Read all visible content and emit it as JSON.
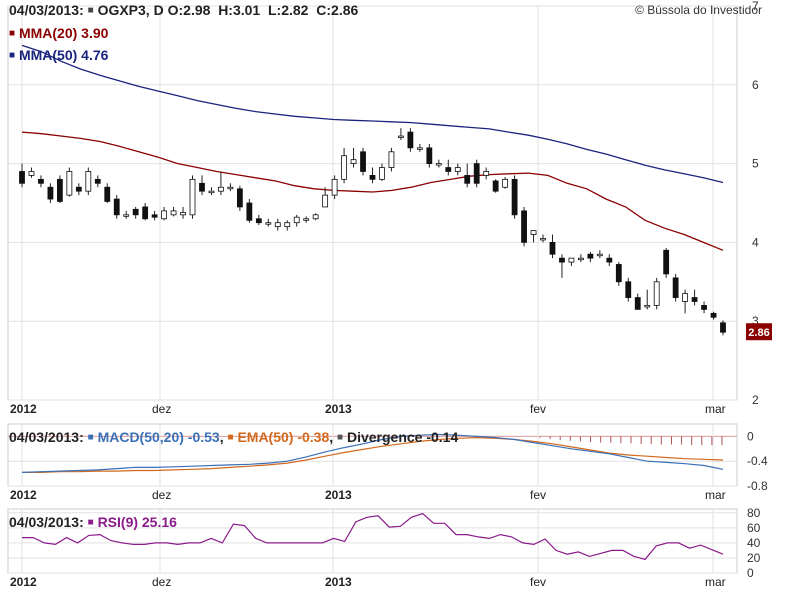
{
  "branding": "© Bússola do Investidor",
  "header": {
    "date": "04/03/2013:",
    "ticker": "OGXP3, D",
    "o_label": "O:",
    "o_val": "2.98",
    "h_label": "H:",
    "h_val": "3.01",
    "l_label": "L:",
    "l_val": "2.82",
    "c_label": "C:",
    "c_val": "2.86"
  },
  "legend": {
    "mma20": "MMA(20) 3.90",
    "mma50": "MMA(50) 4.76",
    "macd_date": "04/03/2013:",
    "macd": "MACD(50,20) -0.53",
    "ema": "EMA(50) -0.38",
    "divergence": "Divergence -0.14",
    "rsi_date": "04/03/2013:",
    "rsi": "RSI(9) 25.16"
  },
  "last_price_badge": "2.86",
  "colors": {
    "mma20": "#8b0000",
    "mma50": "#1a237e",
    "macd": "#3b6fb6",
    "ema": "#d2691e",
    "rsi": "#8b1a8b",
    "badge": "#8b0000"
  },
  "chart_data": [
    {
      "type": "candlestick",
      "title": "OGXP3, D",
      "x_ticks": [
        "2012",
        "dez",
        "2013",
        "fev",
        "mar"
      ],
      "y_ticks": [
        "2",
        "3",
        "4",
        "5",
        "6",
        "7"
      ],
      "ylim": [
        2,
        7
      ],
      "ohlc": [
        [
          4.9,
          5.0,
          4.7,
          4.75
        ],
        [
          4.85,
          4.95,
          4.82,
          4.9
        ],
        [
          4.8,
          4.85,
          4.7,
          4.75
        ],
        [
          4.7,
          4.75,
          4.5,
          4.55
        ],
        [
          4.8,
          4.85,
          4.5,
          4.52
        ],
        [
          4.6,
          4.95,
          4.58,
          4.9
        ],
        [
          4.7,
          4.75,
          4.6,
          4.65
        ],
        [
          4.65,
          4.95,
          4.6,
          4.9
        ],
        [
          4.8,
          4.85,
          4.7,
          4.75
        ],
        [
          4.7,
          4.75,
          4.5,
          4.52
        ],
        [
          4.55,
          4.6,
          4.3,
          4.35
        ],
        [
          4.35,
          4.4,
          4.3,
          4.35
        ],
        [
          4.42,
          4.45,
          4.3,
          4.35
        ],
        [
          4.45,
          4.5,
          4.28,
          4.3
        ],
        [
          4.35,
          4.4,
          4.28,
          4.32
        ],
        [
          4.3,
          4.45,
          4.28,
          4.4
        ],
        [
          4.35,
          4.45,
          4.33,
          4.4
        ],
        [
          4.35,
          4.45,
          4.3,
          4.38
        ],
        [
          4.35,
          4.85,
          4.3,
          4.8
        ],
        [
          4.75,
          4.85,
          4.6,
          4.65
        ],
        [
          4.65,
          4.7,
          4.6,
          4.65
        ],
        [
          4.65,
          4.9,
          4.6,
          4.7
        ],
        [
          4.7,
          4.75,
          4.65,
          4.7
        ],
        [
          4.68,
          4.72,
          4.4,
          4.45
        ],
        [
          4.5,
          4.55,
          4.25,
          4.28
        ],
        [
          4.3,
          4.35,
          4.22,
          4.25
        ],
        [
          4.25,
          4.3,
          4.2,
          4.25
        ],
        [
          4.2,
          4.3,
          4.15,
          4.25
        ],
        [
          4.2,
          4.28,
          4.15,
          4.25
        ],
        [
          4.25,
          4.35,
          4.2,
          4.32
        ],
        [
          4.3,
          4.33,
          4.25,
          4.3
        ],
        [
          4.3,
          4.37,
          4.28,
          4.35
        ],
        [
          4.45,
          4.7,
          4.45,
          4.6
        ],
        [
          4.6,
          4.85,
          4.55,
          4.8
        ],
        [
          4.8,
          5.2,
          4.75,
          5.1
        ],
        [
          5.0,
          5.2,
          4.95,
          5.05
        ],
        [
          5.15,
          5.2,
          4.85,
          4.9
        ],
        [
          4.85,
          4.95,
          4.75,
          4.8
        ],
        [
          4.8,
          5.0,
          4.78,
          4.95
        ],
        [
          4.95,
          5.2,
          4.9,
          5.15
        ],
        [
          5.35,
          5.45,
          5.3,
          5.35
        ],
        [
          5.4,
          5.45,
          5.15,
          5.2
        ],
        [
          5.2,
          5.25,
          5.15,
          5.2
        ],
        [
          5.2,
          5.25,
          4.95,
          5.0
        ],
        [
          5.0,
          5.05,
          4.95,
          5.0
        ],
        [
          4.95,
          5.05,
          4.85,
          4.9
        ],
        [
          4.9,
          5.0,
          4.85,
          4.95
        ],
        [
          4.85,
          5.0,
          4.7,
          4.75
        ],
        [
          5.0,
          5.05,
          4.7,
          4.75
        ],
        [
          4.85,
          4.95,
          4.8,
          4.9
        ],
        [
          4.78,
          4.8,
          4.63,
          4.65
        ],
        [
          4.7,
          4.83,
          4.68,
          4.8
        ],
        [
          4.8,
          4.85,
          4.3,
          4.35
        ],
        [
          4.4,
          4.45,
          3.95,
          4.0
        ],
        [
          4.1,
          4.15,
          4.0,
          4.15
        ],
        [
          4.05,
          4.1,
          4.0,
          4.05
        ],
        [
          4.0,
          4.1,
          3.8,
          3.85
        ],
        [
          3.8,
          3.85,
          3.55,
          3.75
        ],
        [
          3.75,
          3.8,
          3.7,
          3.8
        ],
        [
          3.8,
          3.85,
          3.75,
          3.8
        ],
        [
          3.85,
          3.88,
          3.75,
          3.8
        ],
        [
          3.85,
          3.9,
          3.8,
          3.85
        ],
        [
          3.8,
          3.85,
          3.7,
          3.75
        ],
        [
          3.72,
          3.75,
          3.45,
          3.5
        ],
        [
          3.5,
          3.55,
          3.25,
          3.3
        ],
        [
          3.3,
          3.35,
          3.15,
          3.15
        ],
        [
          3.2,
          3.4,
          3.15,
          3.2
        ],
        [
          3.2,
          3.55,
          3.15,
          3.5
        ],
        [
          3.9,
          3.93,
          3.55,
          3.6
        ],
        [
          3.55,
          3.6,
          3.25,
          3.3
        ],
        [
          3.25,
          3.4,
          3.1,
          3.35
        ],
        [
          3.3,
          3.4,
          3.2,
          3.25
        ],
        [
          3.2,
          3.25,
          3.1,
          3.15
        ],
        [
          3.1,
          3.12,
          3.02,
          3.05
        ],
        [
          2.98,
          3.01,
          2.82,
          2.86
        ]
      ],
      "mma20": [
        5.4,
        5.38,
        5.35,
        5.32,
        5.28,
        5.22,
        5.15,
        5.08,
        5.0,
        4.95,
        4.9,
        4.86,
        4.82,
        4.78,
        4.72,
        4.68,
        4.66,
        4.65,
        4.64,
        4.66,
        4.7,
        4.76,
        4.8,
        4.84,
        4.86,
        4.87,
        4.88,
        4.85,
        4.75,
        4.68,
        4.55,
        4.45,
        4.28,
        4.18,
        4.1,
        4.0,
        3.9
      ],
      "mma50": [
        6.5,
        6.42,
        6.3,
        6.2,
        6.12,
        6.05,
        5.98,
        5.92,
        5.86,
        5.8,
        5.75,
        5.7,
        5.66,
        5.63,
        5.6,
        5.58,
        5.56,
        5.55,
        5.54,
        5.53,
        5.52,
        5.5,
        5.48,
        5.46,
        5.44,
        5.4,
        5.36,
        5.31,
        5.25,
        5.18,
        5.12,
        5.05,
        4.98,
        4.92,
        4.87,
        4.82,
        4.76
      ]
    },
    {
      "type": "line",
      "title": "MACD(50,20)",
      "x_ticks": [
        "2012",
        "dez",
        "2013",
        "fev",
        "mar"
      ],
      "y_ticks": [
        "0",
        "-0.4",
        "-0.8"
      ],
      "ylim": [
        -0.8,
        0.2
      ],
      "macd": [
        -0.58,
        -0.57,
        -0.56,
        -0.55,
        -0.54,
        -0.52,
        -0.5,
        -0.5,
        -0.49,
        -0.48,
        -0.47,
        -0.46,
        -0.45,
        -0.43,
        -0.4,
        -0.33,
        -0.25,
        -0.18,
        -0.12,
        -0.05,
        0.0,
        0.02,
        0.03,
        0.02,
        0.0,
        -0.02,
        -0.05,
        -0.1,
        -0.15,
        -0.2,
        -0.24,
        -0.28,
        -0.34,
        -0.4,
        -0.42,
        -0.44,
        -0.47,
        -0.53
      ],
      "ema": [
        -0.58,
        -0.58,
        -0.57,
        -0.57,
        -0.56,
        -0.56,
        -0.55,
        -0.55,
        -0.54,
        -0.53,
        -0.52,
        -0.5,
        -0.48,
        -0.46,
        -0.43,
        -0.38,
        -0.32,
        -0.26,
        -0.21,
        -0.16,
        -0.12,
        -0.08,
        -0.05,
        -0.03,
        -0.02,
        -0.03,
        -0.05,
        -0.08,
        -0.12,
        -0.17,
        -0.22,
        -0.27,
        -0.3,
        -0.32,
        -0.34,
        -0.36,
        -0.37,
        -0.38
      ],
      "divergence": [
        -0.02,
        -0.04,
        -0.06,
        -0.07,
        -0.08,
        -0.09,
        -0.1,
        -0.1,
        -0.11,
        -0.11,
        -0.12,
        -0.12,
        -0.13,
        -0.13,
        -0.13,
        -0.14,
        -0.14,
        -0.14,
        -0.14
      ]
    },
    {
      "type": "line",
      "title": "RSI(9)",
      "x_ticks": [
        "2012",
        "dez",
        "2013",
        "fev",
        "mar"
      ],
      "y_ticks": [
        "80",
        "60",
        "40",
        "20",
        "0"
      ],
      "ylim": [
        0,
        85
      ],
      "values": [
        47,
        47,
        40,
        38,
        47,
        40,
        50,
        51,
        43,
        40,
        38,
        38,
        40,
        40,
        38,
        40,
        40,
        46,
        40,
        65,
        63,
        46,
        40,
        40,
        40,
        40,
        40,
        40,
        46,
        42,
        68,
        74,
        76,
        61,
        62,
        74,
        79,
        66,
        66,
        51,
        51,
        48,
        46,
        51,
        48,
        40,
        38,
        45,
        30,
        25,
        28,
        22,
        26,
        30,
        30,
        22,
        18,
        36,
        40,
        40,
        33,
        37,
        31,
        25
      ]
    }
  ]
}
